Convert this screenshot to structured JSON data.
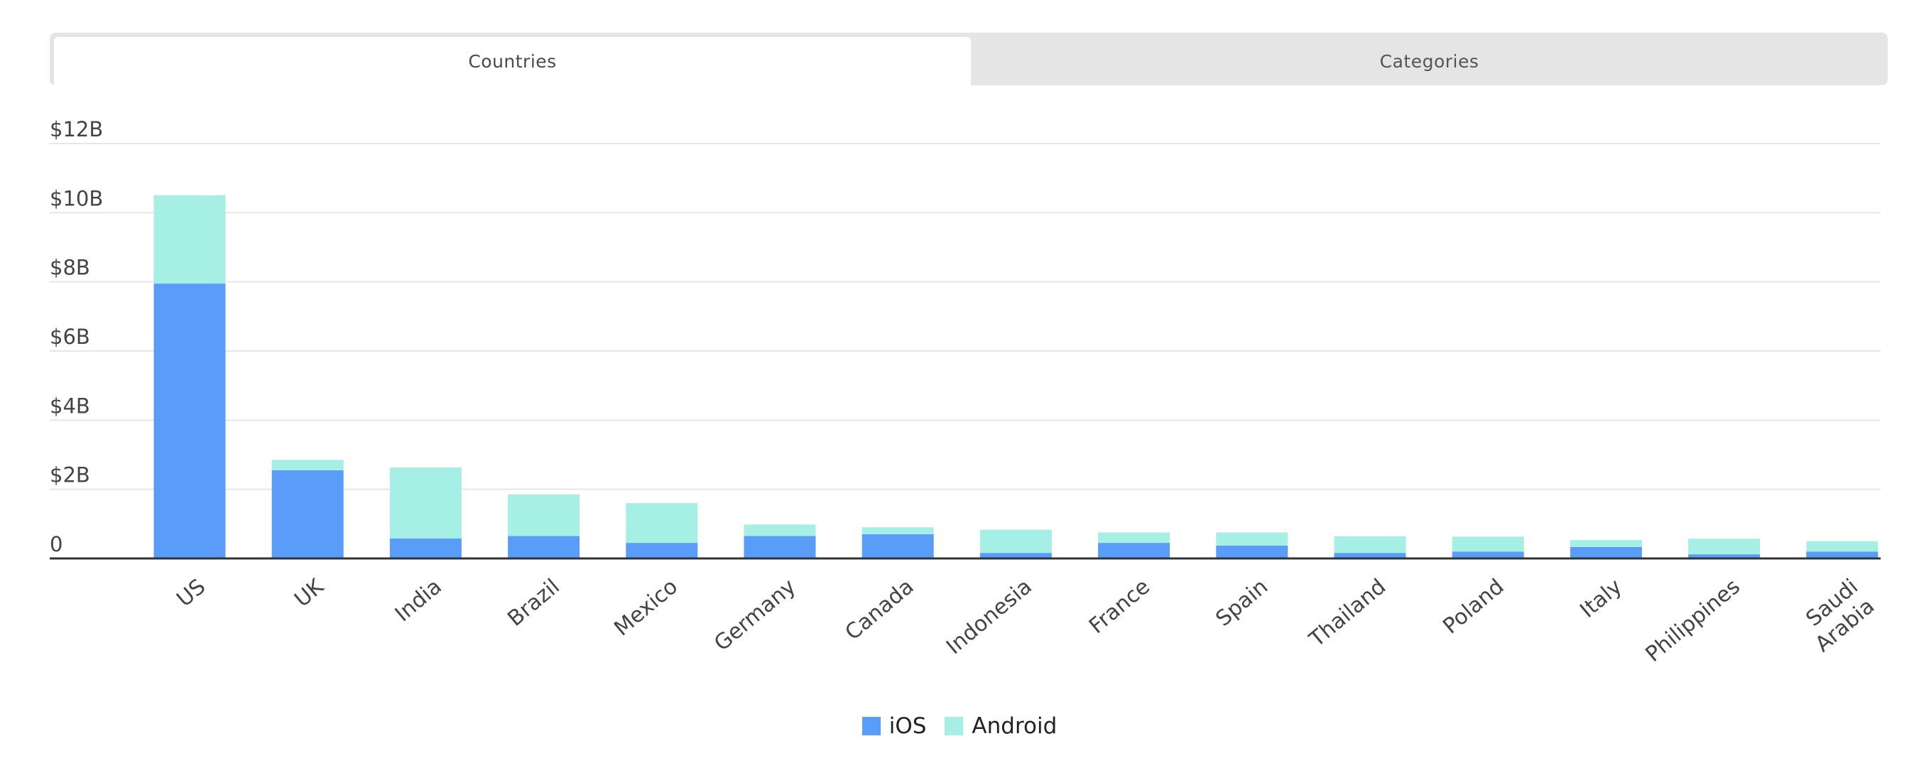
{
  "tabs": [
    {
      "label": "Countries",
      "active": true
    },
    {
      "label": "Categories",
      "active": false
    }
  ],
  "colors": {
    "ios": "#5a9df8",
    "android": "#a5efe5",
    "grid": "#e6e6e6",
    "axis": "#333333"
  },
  "chart_data": {
    "type": "bar",
    "stacked": true,
    "categories": [
      "US",
      "UK",
      "India",
      "Brazil",
      "Mexico",
      "Germany",
      "Canada",
      "Indonesia",
      "France",
      "Spain",
      "Thailand",
      "Poland",
      "Italy",
      "Philippines",
      "Saudi Arabia"
    ],
    "series": [
      {
        "name": "iOS",
        "values": [
          7.95,
          2.55,
          0.58,
          0.65,
          0.45,
          0.65,
          0.7,
          0.16,
          0.45,
          0.37,
          0.16,
          0.2,
          0.33,
          0.12,
          0.2
        ]
      },
      {
        "name": "Android",
        "values": [
          2.55,
          0.3,
          2.05,
          1.2,
          1.15,
          0.33,
          0.2,
          0.67,
          0.3,
          0.38,
          0.48,
          0.43,
          0.2,
          0.45,
          0.3
        ]
      }
    ],
    "yticks": [
      "0",
      "$2B",
      "$4B",
      "$6B",
      "$8B",
      "$10B",
      "$12B"
    ],
    "ylim": [
      0,
      12
    ],
    "ylabel": "",
    "xlabel": "",
    "grid": true,
    "legend_position": "bottom-center"
  }
}
